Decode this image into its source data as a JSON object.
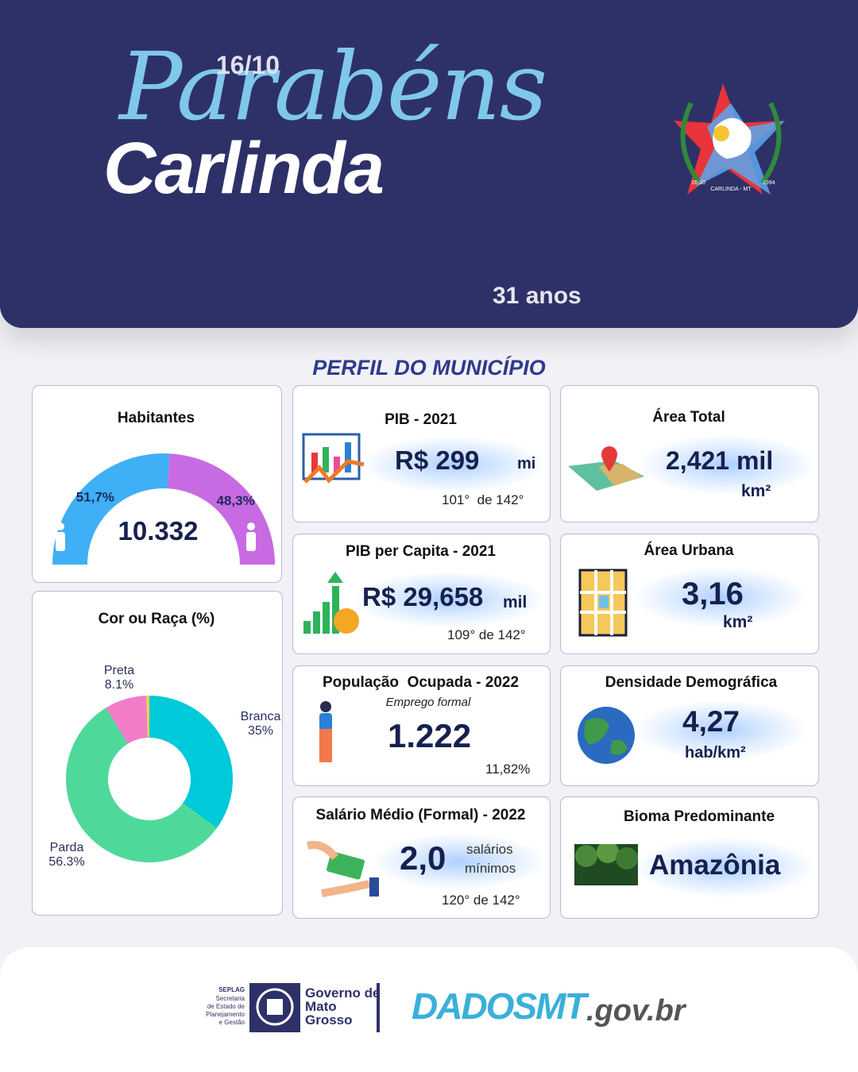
{
  "header": {
    "date": "16/10",
    "script_title": "Parabéns",
    "city": "Carlinda",
    "age": "31 anos",
    "emblem": {
      "left": "16-10",
      "center": "CARLINDA - MT",
      "right": "1994"
    }
  },
  "section_title": "PERFIL DO MUNICÍPIO",
  "habitantes": {
    "title": "Habitantes",
    "total": "10.332",
    "values": [
      51.7,
      48.3
    ],
    "value_labels": [
      "51,7%",
      "48,3%"
    ],
    "colors": [
      "#3fb0f5",
      "#c86ae2"
    ]
  },
  "cor_raca": {
    "type": "donut",
    "title": "Cor ou Raça (%)",
    "categories": [
      "Branca",
      "Parda",
      "Preta",
      null
    ],
    "values": [
      35,
      56.3,
      8.1,
      0.6
    ],
    "value_labels": [
      "35%",
      "56.3%",
      "8.1%",
      null
    ],
    "colors": [
      "#00c9d9",
      "#4ed99a",
      "#f27cc8",
      "#f4d24c"
    ]
  },
  "pib": {
    "title": "PIB - 2021",
    "value": "R$ 299",
    "unit": "mi",
    "rank": "101°  de 142°"
  },
  "pib_per_capita": {
    "title": "PIB per Capita - 2021",
    "value": "R$ 29,658",
    "unit": "mil",
    "rank": "109° de 142°"
  },
  "populacao_ocupada": {
    "title": "População  Ocupada - 2022",
    "subtitle": "Emprego formal",
    "value": "1.222",
    "share": "11,82%"
  },
  "salario_medio": {
    "title": "Salário Médio (Formal) - 2022",
    "value": "2,0",
    "unit_line1": "salários",
    "unit_line2": "mínimos",
    "rank": "120° de 142°"
  },
  "area_total": {
    "title": "Área Total",
    "value": "2,421 mil",
    "unit": "km²"
  },
  "area_urbana": {
    "title": "Área Urbana",
    "value": "3,16",
    "unit": "km²"
  },
  "densidade": {
    "title": "Densidade Demográfica",
    "value": "4,27",
    "unit": "hab/km²"
  },
  "bioma": {
    "title": "Bioma Predominante",
    "value": "Amazônia"
  },
  "footer": {
    "seplag": "SEPLAG",
    "seplag_lines": [
      "Secretaria",
      "de Estado de",
      "Planejamento",
      "e Gestão"
    ],
    "governo_lines": [
      "Governo de",
      "Mato",
      "Grosso"
    ],
    "dados": "DADOSMT",
    "domain": ".gov.br"
  }
}
